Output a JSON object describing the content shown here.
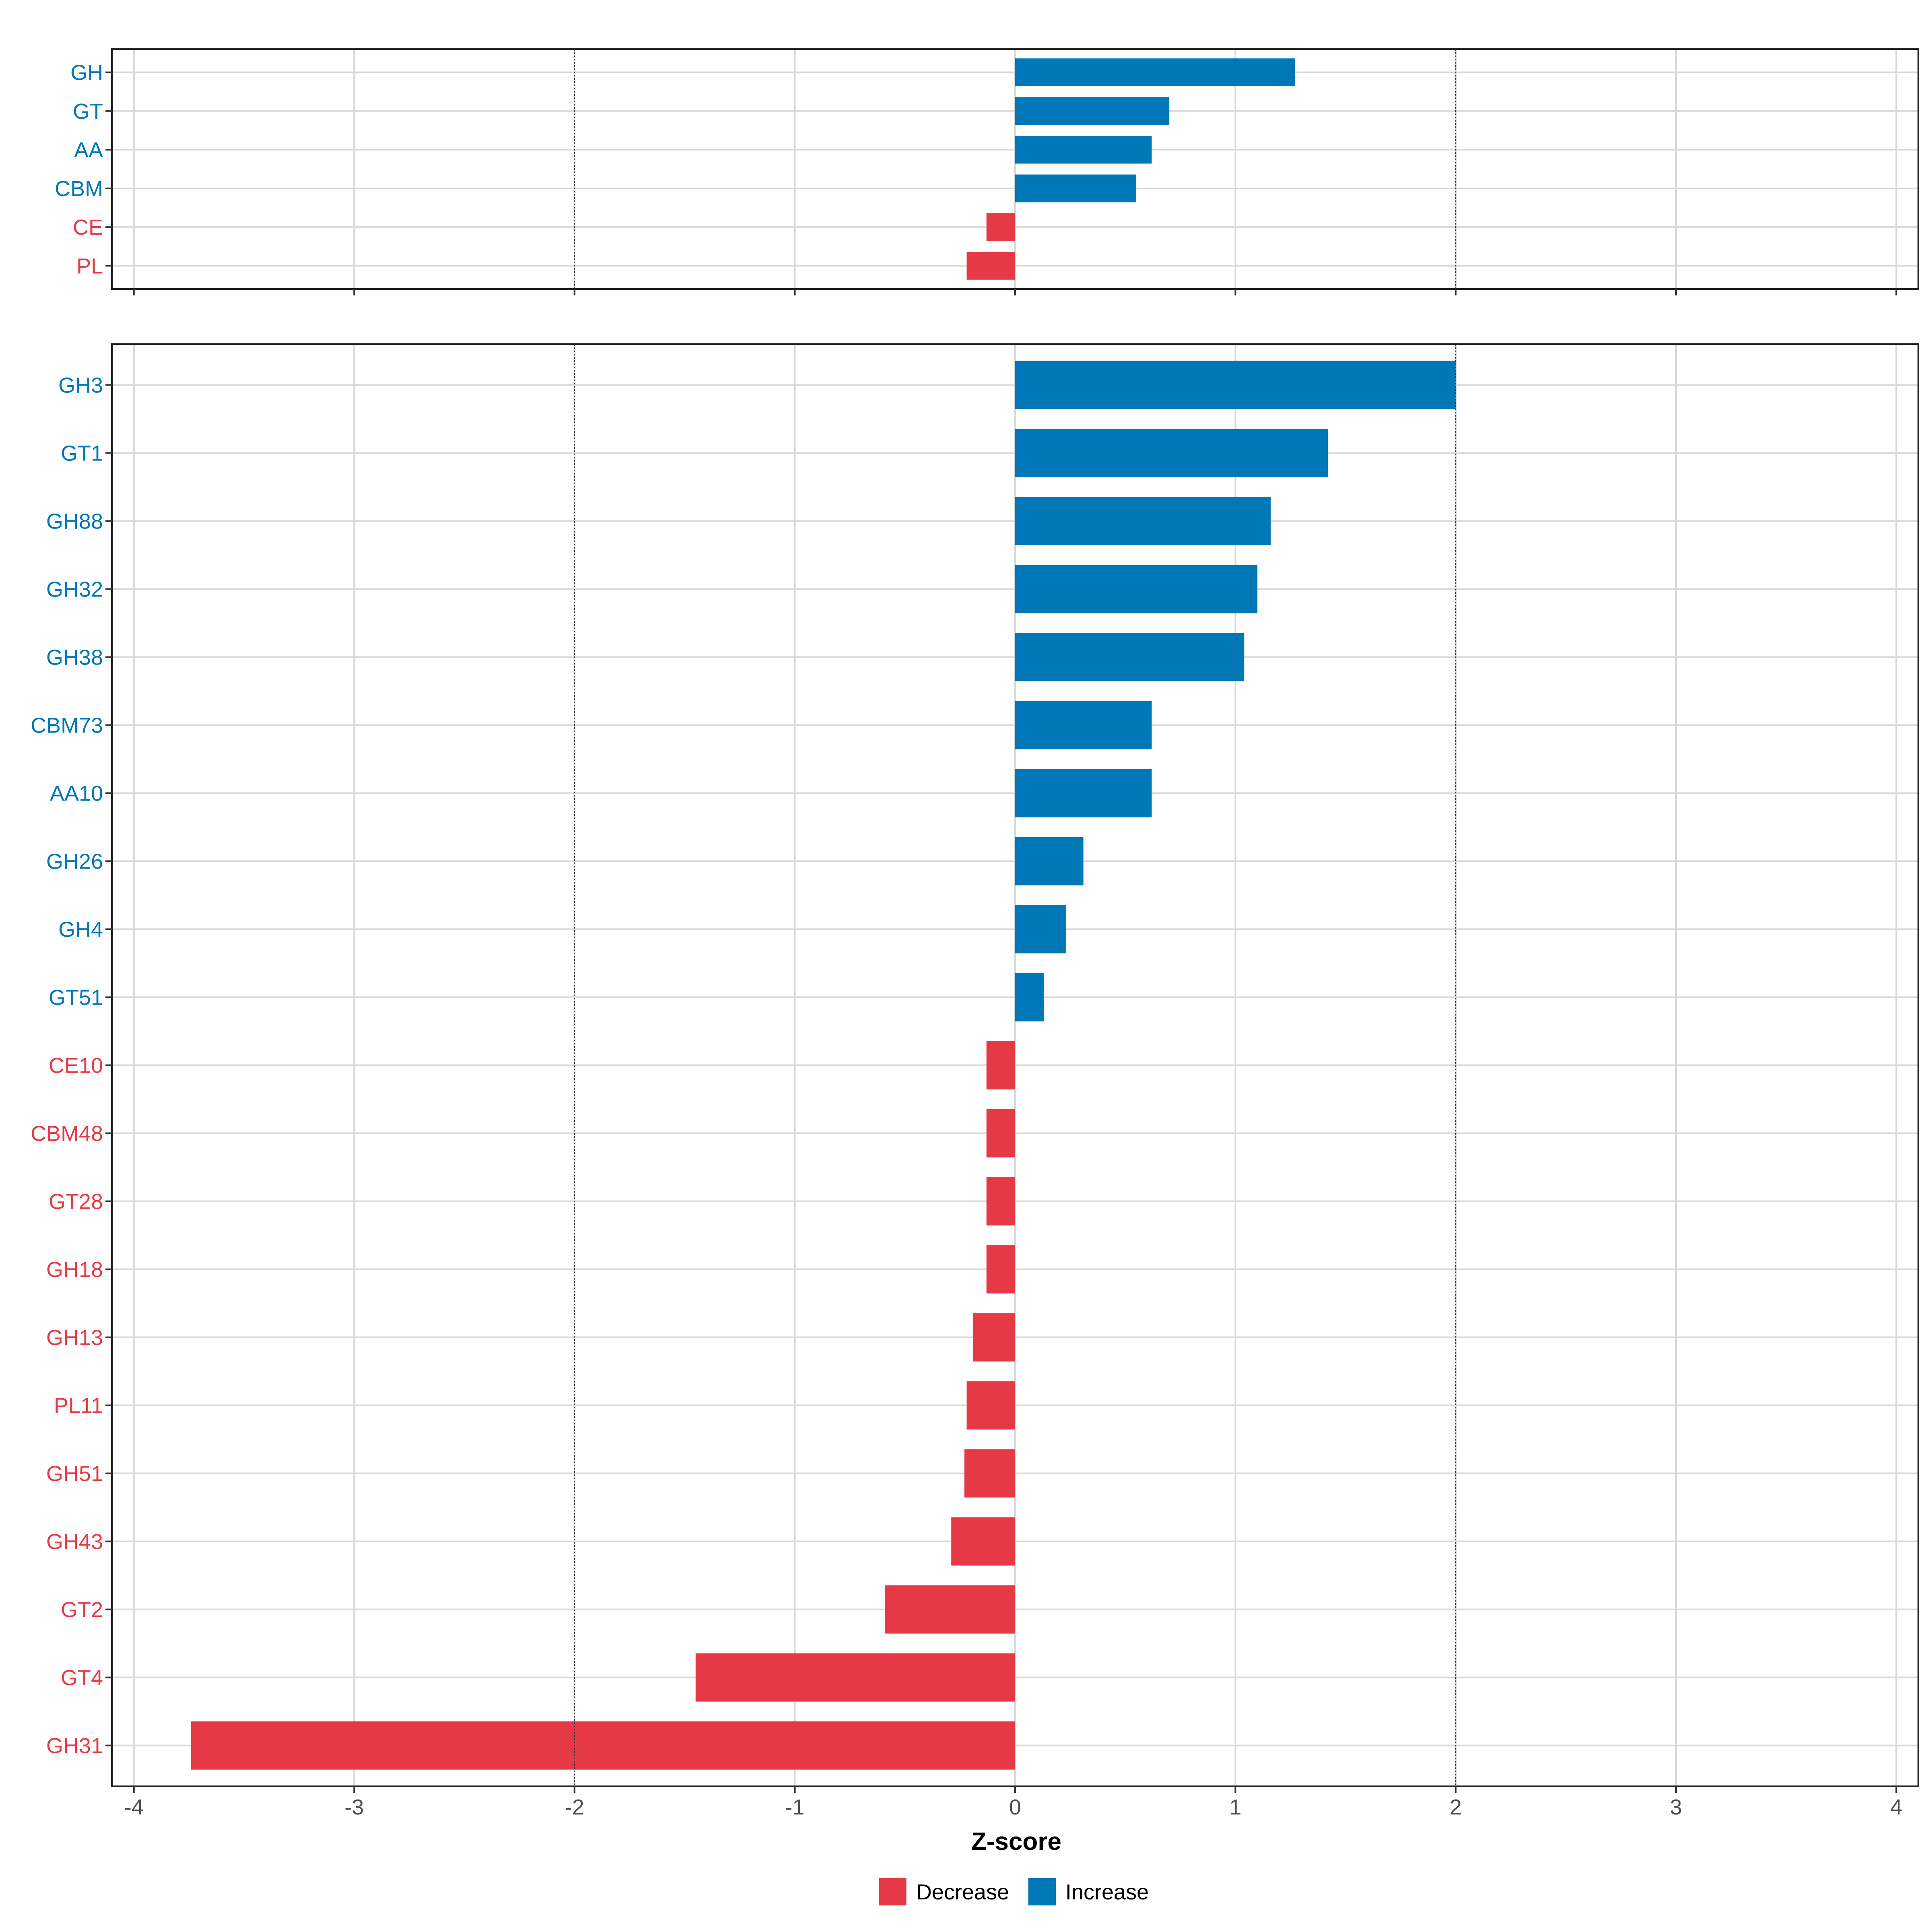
{
  "chart_data": {
    "type": "bar",
    "orientation": "horizontal",
    "xlabel": "Z-score",
    "xlim": [
      -4.1,
      4.1
    ],
    "x_ticks": [
      -4,
      -3,
      -2,
      -1,
      0,
      1,
      2,
      3,
      4
    ],
    "x_tick_labels": [
      "-4",
      "-3",
      "-2",
      "-1",
      "0",
      "1",
      "2",
      "3",
      "4"
    ],
    "reference_lines": [
      -2,
      2
    ],
    "colors": {
      "Decrease": "#e63946",
      "Increase": "#0077b6"
    },
    "legend": {
      "position": "bottom",
      "entries": [
        {
          "label": "Decrease",
          "color": "#e63946"
        },
        {
          "label": "Increase",
          "color": "#0077b6"
        }
      ]
    },
    "panels": [
      {
        "name": "classes",
        "categories": [
          "GH",
          "GT",
          "AA",
          "CBM",
          "CE",
          "PL"
        ],
        "values": [
          1.27,
          0.7,
          0.62,
          0.55,
          -0.13,
          -0.22
        ]
      },
      {
        "name": "families",
        "categories": [
          "GH3",
          "GT1",
          "GH88",
          "GH32",
          "GH38",
          "CBM73",
          "AA10",
          "GH26",
          "GH4",
          "GT51",
          "CE10",
          "CBM48",
          "GT28",
          "GH18",
          "GH13",
          "PL11",
          "GH51",
          "GH43",
          "GT2",
          "GT4",
          "GH31"
        ],
        "values": [
          2.0,
          1.42,
          1.16,
          1.1,
          1.04,
          0.62,
          0.62,
          0.31,
          0.23,
          0.13,
          -0.13,
          -0.13,
          -0.13,
          -0.13,
          -0.19,
          -0.22,
          -0.23,
          -0.29,
          -0.59,
          -1.45,
          -3.74
        ]
      }
    ]
  }
}
